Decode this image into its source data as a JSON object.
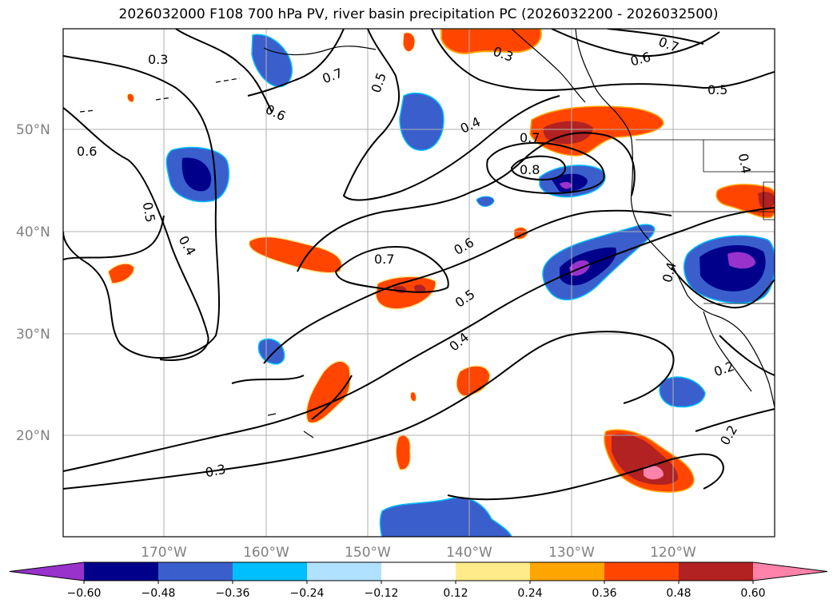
{
  "title": "2026032000 F108 700 hPa PV, river basin precipitation PC (2026032200 - 2026032500)",
  "lat_labels": [
    "50°N",
    "40°N",
    "30°N",
    "20°N"
  ],
  "lon_labels": [
    "170°W",
    "160°W",
    "150°W",
    "140°W",
    "130°W",
    "120°W"
  ],
  "colorbar": {
    "colors": [
      "#9932cc",
      "#00008b",
      "#3a5fcd",
      "#00bfff",
      "#b0e2ff",
      "#ffffff",
      "#ffeb8a",
      "#ffa500",
      "#ff4500",
      "#b22222",
      "#ff82ab"
    ],
    "ticks": [
      "−0.60",
      "−0.48",
      "−0.36",
      "−0.24",
      "−0.12",
      "0.12",
      "0.24",
      "0.36",
      "0.48",
      "0.60"
    ]
  },
  "contour_labels": [
    "0.3",
    "0.6",
    "0.5",
    "0.4",
    "0.7",
    "0.5",
    "0.6",
    "0.3",
    "0.7",
    "0.6",
    "0.5",
    "0.4",
    "0.7",
    "0.8",
    "0.7",
    "0.6",
    "0.5",
    "0.4",
    "0.3",
    "0.4",
    "0.4",
    "0.2",
    "0.2"
  ]
}
